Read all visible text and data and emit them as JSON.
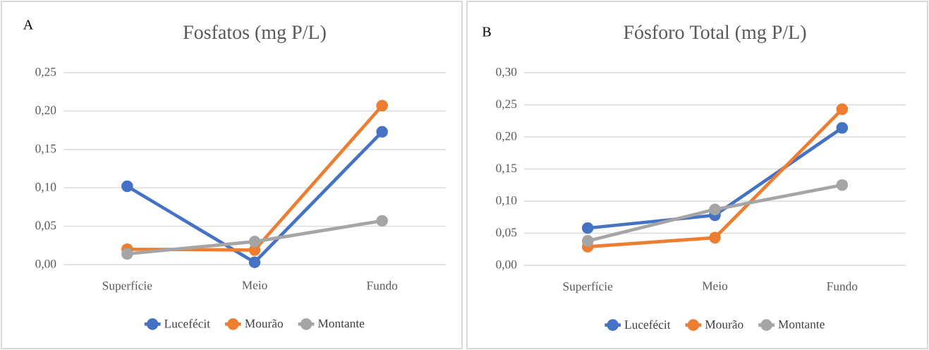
{
  "chart_data": [
    {
      "type": "line",
      "title": "Fosfatos (mg P/L)",
      "annotations": [
        "A"
      ],
      "categories": [
        "Superfície",
        "Meio",
        "Fundo"
      ],
      "series": [
        {
          "name": "Lucefécit",
          "color": "#4472c4",
          "values": [
            0.102,
            0.003,
            0.173
          ]
        },
        {
          "name": "Mourão",
          "color": "#ed7d31",
          "values": [
            0.02,
            0.019,
            0.207
          ]
        },
        {
          "name": "Montante",
          "color": "#a5a5a5",
          "values": [
            0.014,
            0.03,
            0.057
          ]
        }
      ],
      "ylim": [
        0,
        0.25
      ],
      "yticks": [
        {
          "value": 0,
          "label": "0,00"
        },
        {
          "value": 0.05,
          "label": "0,05"
        },
        {
          "value": 0.1,
          "label": "0,10"
        },
        {
          "value": 0.15,
          "label": "0,15"
        },
        {
          "value": 0.2,
          "label": "0,20"
        },
        {
          "value": 0.25,
          "label": "0,25"
        }
      ],
      "grid": "y",
      "legend": "bottom",
      "marker": "circle",
      "line_style": "solid"
    },
    {
      "type": "line",
      "title": "Fósforo Total (mg P/L)",
      "annotations": [
        "B"
      ],
      "categories": [
        "Superfície",
        "Meio",
        "Fundo"
      ],
      "series": [
        {
          "name": "Lucefécit",
          "color": "#4472c4",
          "values": [
            0.058,
            0.078,
            0.214
          ]
        },
        {
          "name": "Mourão",
          "color": "#ed7d31",
          "values": [
            0.029,
            0.043,
            0.243
          ]
        },
        {
          "name": "Montante",
          "color": "#a5a5a5",
          "values": [
            0.038,
            0.087,
            0.125
          ]
        }
      ],
      "ylim": [
        0,
        0.3
      ],
      "yticks": [
        {
          "value": 0,
          "label": "0,00"
        },
        {
          "value": 0.05,
          "label": "0,05"
        },
        {
          "value": 0.1,
          "label": "0,10"
        },
        {
          "value": 0.15,
          "label": "0,15"
        },
        {
          "value": 0.2,
          "label": "0,20"
        },
        {
          "value": 0.25,
          "label": "0,25"
        },
        {
          "value": 0.3,
          "label": "0,30"
        }
      ],
      "grid": "y",
      "legend": "bottom",
      "marker": "circle",
      "line_style": "solid"
    }
  ]
}
